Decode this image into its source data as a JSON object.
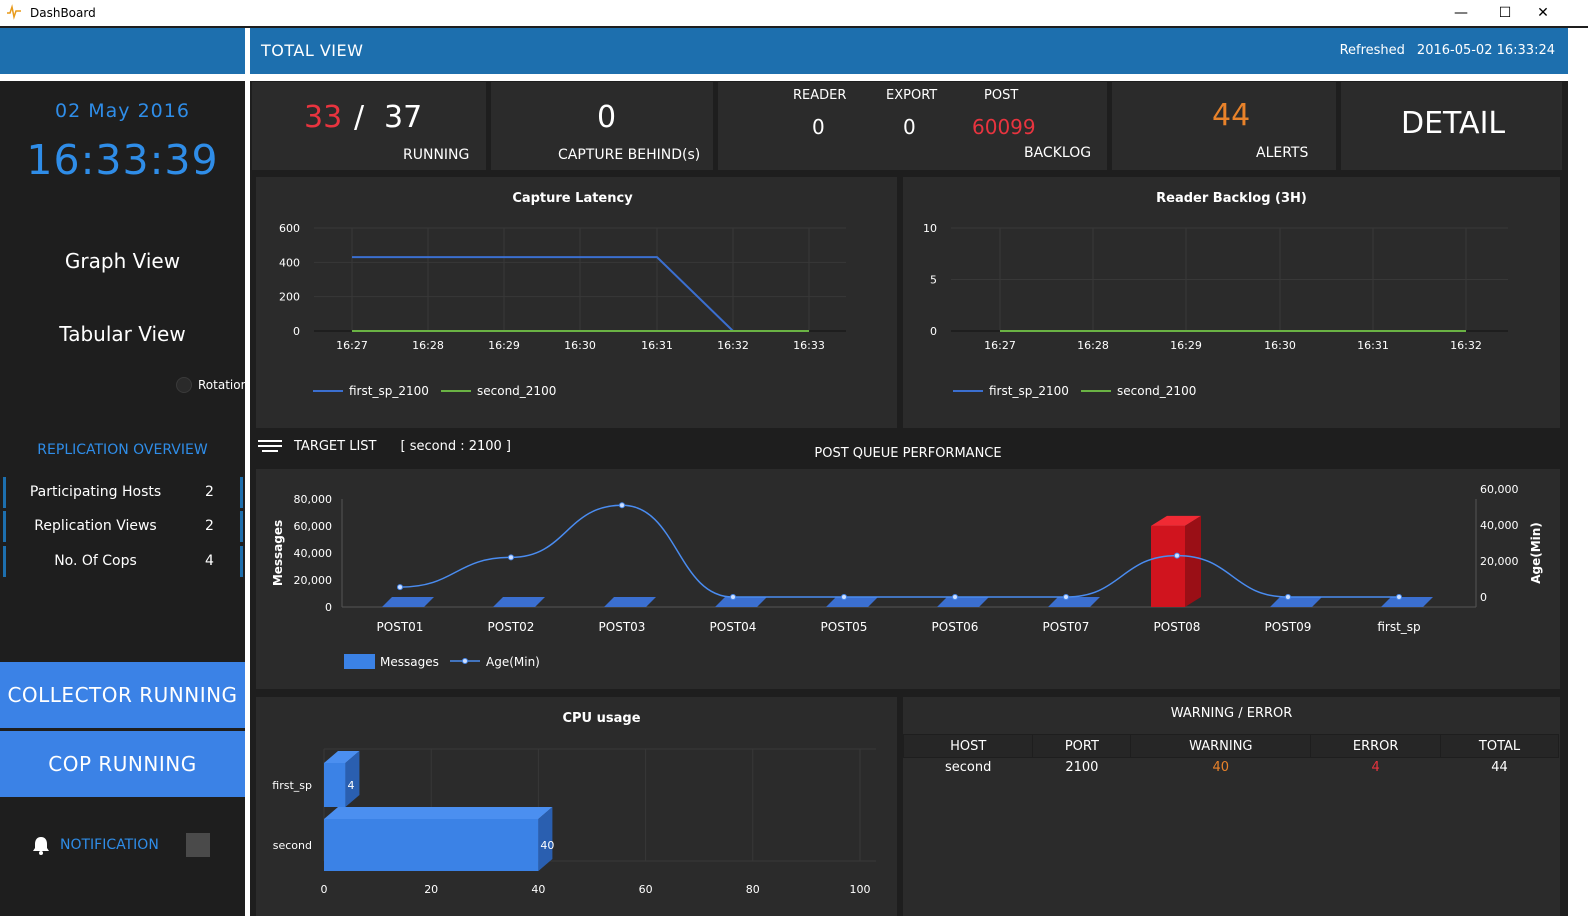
{
  "window": {
    "title": "DashBoard",
    "minimize": "—",
    "maximize": "☐",
    "close": "✕"
  },
  "header": {
    "title": "TOTAL VIEW",
    "refreshed_label": "Refreshed",
    "refreshed_value": "2016-05-02 16:33:24"
  },
  "sidebar": {
    "date": "02 May 2016",
    "time": "16:33:39",
    "graph_view": "Graph View",
    "tabular_view": "Tabular View",
    "rotation": "Rotation",
    "replication_title": "REPLICATION OVERVIEW",
    "stats": [
      {
        "label": "Participating Hosts",
        "value": "2"
      },
      {
        "label": "Replication Views",
        "value": "2"
      },
      {
        "label": "No. Of Cops",
        "value": "4"
      }
    ],
    "collector": "COLLECTOR RUNNING",
    "cop": "COP RUNNING",
    "notification": "NOTIFICATION"
  },
  "kpis": {
    "running_num": "33",
    "running_sep": "/",
    "running_total": "37",
    "running_label": "RUNNING",
    "capture_value": "0",
    "capture_label": "CAPTURE BEHIND(s)",
    "reader_label": "READER",
    "export_label": "EXPORT",
    "post_label": "POST",
    "reader_value": "0",
    "export_value": "0",
    "post_value": "60099",
    "backlog_label": "BACKLOG",
    "alerts_value": "44",
    "alerts_label": "ALERTS",
    "detail": "DETAIL"
  },
  "colors": {
    "accent": "#2f8de8",
    "red": "#e8343f",
    "orange": "#e8822a",
    "blue_bar": "#3b82e6",
    "green": "#6ab344"
  },
  "target": {
    "label": "TARGET LIST",
    "selection": "[ second : 2100 ]",
    "icon": "menu-icon"
  },
  "chart_data": [
    {
      "type": "line",
      "title": "Capture Latency",
      "categories": [
        "16:27",
        "16:28",
        "16:29",
        "16:30",
        "16:31",
        "16:32",
        "16:33"
      ],
      "yticks": [
        "600",
        "400",
        "200",
        "0"
      ],
      "ylim": [
        0,
        600
      ],
      "series": [
        {
          "name": "first_sp_2100",
          "color": "#3b6fd0",
          "values": [
            430,
            430,
            430,
            430,
            430,
            0,
            0
          ]
        },
        {
          "name": "second_2100",
          "color": "#6ab344",
          "values": [
            0,
            0,
            0,
            0,
            0,
            0,
            0
          ]
        }
      ]
    },
    {
      "type": "line",
      "title": "Reader Backlog (3H)",
      "categories": [
        "16:27",
        "16:28",
        "16:29",
        "16:30",
        "16:31",
        "16:32"
      ],
      "yticks": [
        "10",
        "5",
        "0"
      ],
      "ylim": [
        0,
        10
      ],
      "series": [
        {
          "name": "first_sp_2100",
          "color": "#3b6fd0",
          "values": [
            0,
            0,
            0,
            0,
            0,
            0
          ]
        },
        {
          "name": "second_2100",
          "color": "#6ab344",
          "values": [
            0,
            0,
            0,
            0,
            0,
            0
          ]
        }
      ]
    },
    {
      "type": "bar",
      "title": "POST QUEUE PERFORMANCE",
      "categories": [
        "POST01",
        "POST02",
        "POST03",
        "POST04",
        "POST05",
        "POST06",
        "POST07",
        "POST08",
        "POST09",
        "first_sp"
      ],
      "ylabel": "Messages",
      "y2label": "Age(Min)",
      "yticks": [
        "80,000",
        "60,000",
        "40,000",
        "20,000",
        "0"
      ],
      "y2ticks": [
        "60,000",
        "40,000",
        "20,000",
        "0"
      ],
      "ylim": [
        0,
        80000
      ],
      "y2lim": [
        0,
        60000
      ],
      "series": [
        {
          "name": "Messages",
          "color": "#3b82e6",
          "values": [
            0,
            0,
            0,
            0,
            0,
            0,
            0,
            60099,
            0,
            0
          ]
        },
        {
          "name": "Age(Min)",
          "color": "#4a8cf0",
          "values": [
            5500,
            22000,
            51000,
            0,
            0,
            0,
            0,
            23000,
            0,
            0
          ]
        }
      ]
    },
    {
      "type": "bar",
      "title": "CPU usage",
      "categories": [
        "first_sp",
        "second"
      ],
      "xticks": [
        "0",
        "20",
        "40",
        "60",
        "80",
        "100"
      ],
      "xlim": [
        0,
        100
      ],
      "values": [
        4,
        40
      ],
      "value_labels": [
        "4",
        "40"
      ]
    }
  ],
  "warning_table": {
    "title": "WARNING / ERROR",
    "columns": [
      "HOST",
      "PORT",
      "WARNING",
      "ERROR",
      "TOTAL"
    ],
    "rows": [
      [
        "second",
        "2100",
        "40",
        "4",
        "44"
      ]
    ]
  }
}
